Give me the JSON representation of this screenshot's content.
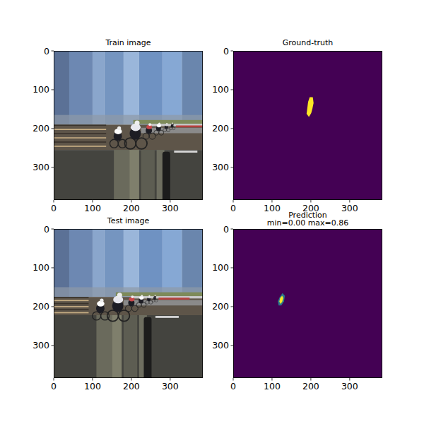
{
  "chart_data": [
    {
      "type": "image",
      "title": "Train image",
      "xlim": [
        0,
        384
      ],
      "ylim": [
        384,
        0
      ],
      "xticks": [
        0,
        100,
        200,
        300
      ],
      "yticks": [
        0,
        100,
        200,
        300
      ]
    },
    {
      "type": "mask",
      "title": "Ground-truth",
      "xlim": [
        0,
        384
      ],
      "ylim": [
        384,
        0
      ],
      "xticks": [
        0,
        100,
        200,
        300
      ],
      "yticks": [
        0,
        100,
        200,
        300
      ],
      "color_range": [
        0,
        1
      ],
      "regions": [
        {
          "value": 1,
          "x": [
            197,
            205,
            207,
            204,
            201,
            195,
            189,
            191,
            193
          ],
          "y": [
            119,
            119,
            134,
            149,
            160,
            170,
            162,
            146,
            131
          ]
        }
      ]
    },
    {
      "type": "image",
      "title": "Test image",
      "xlim": [
        0,
        384
      ],
      "ylim": [
        384,
        0
      ],
      "xticks": [
        0,
        100,
        200,
        300
      ],
      "yticks": [
        0,
        100,
        200,
        300
      ]
    },
    {
      "type": "mask",
      "title": "Prediction\nmin=0.00 max=0.86",
      "xlim": [
        0,
        384
      ],
      "ylim": [
        384,
        0
      ],
      "xticks": [
        0,
        100,
        200,
        300
      ],
      "yticks": [
        0,
        100,
        200,
        300
      ],
      "color_range": [
        0,
        0.86
      ],
      "regions": [
        {
          "value": 0.35,
          "x": [
            127,
            133,
            131,
            124,
            117,
            115,
            120
          ],
          "y": [
            165,
            172,
            186,
            197,
            197,
            186,
            175
          ]
        },
        {
          "value": 0.86,
          "x": [
            126,
            129,
            126,
            121,
            119,
            121
          ],
          "y": [
            172,
            178,
            188,
            193,
            186,
            178
          ]
        }
      ]
    }
  ]
}
